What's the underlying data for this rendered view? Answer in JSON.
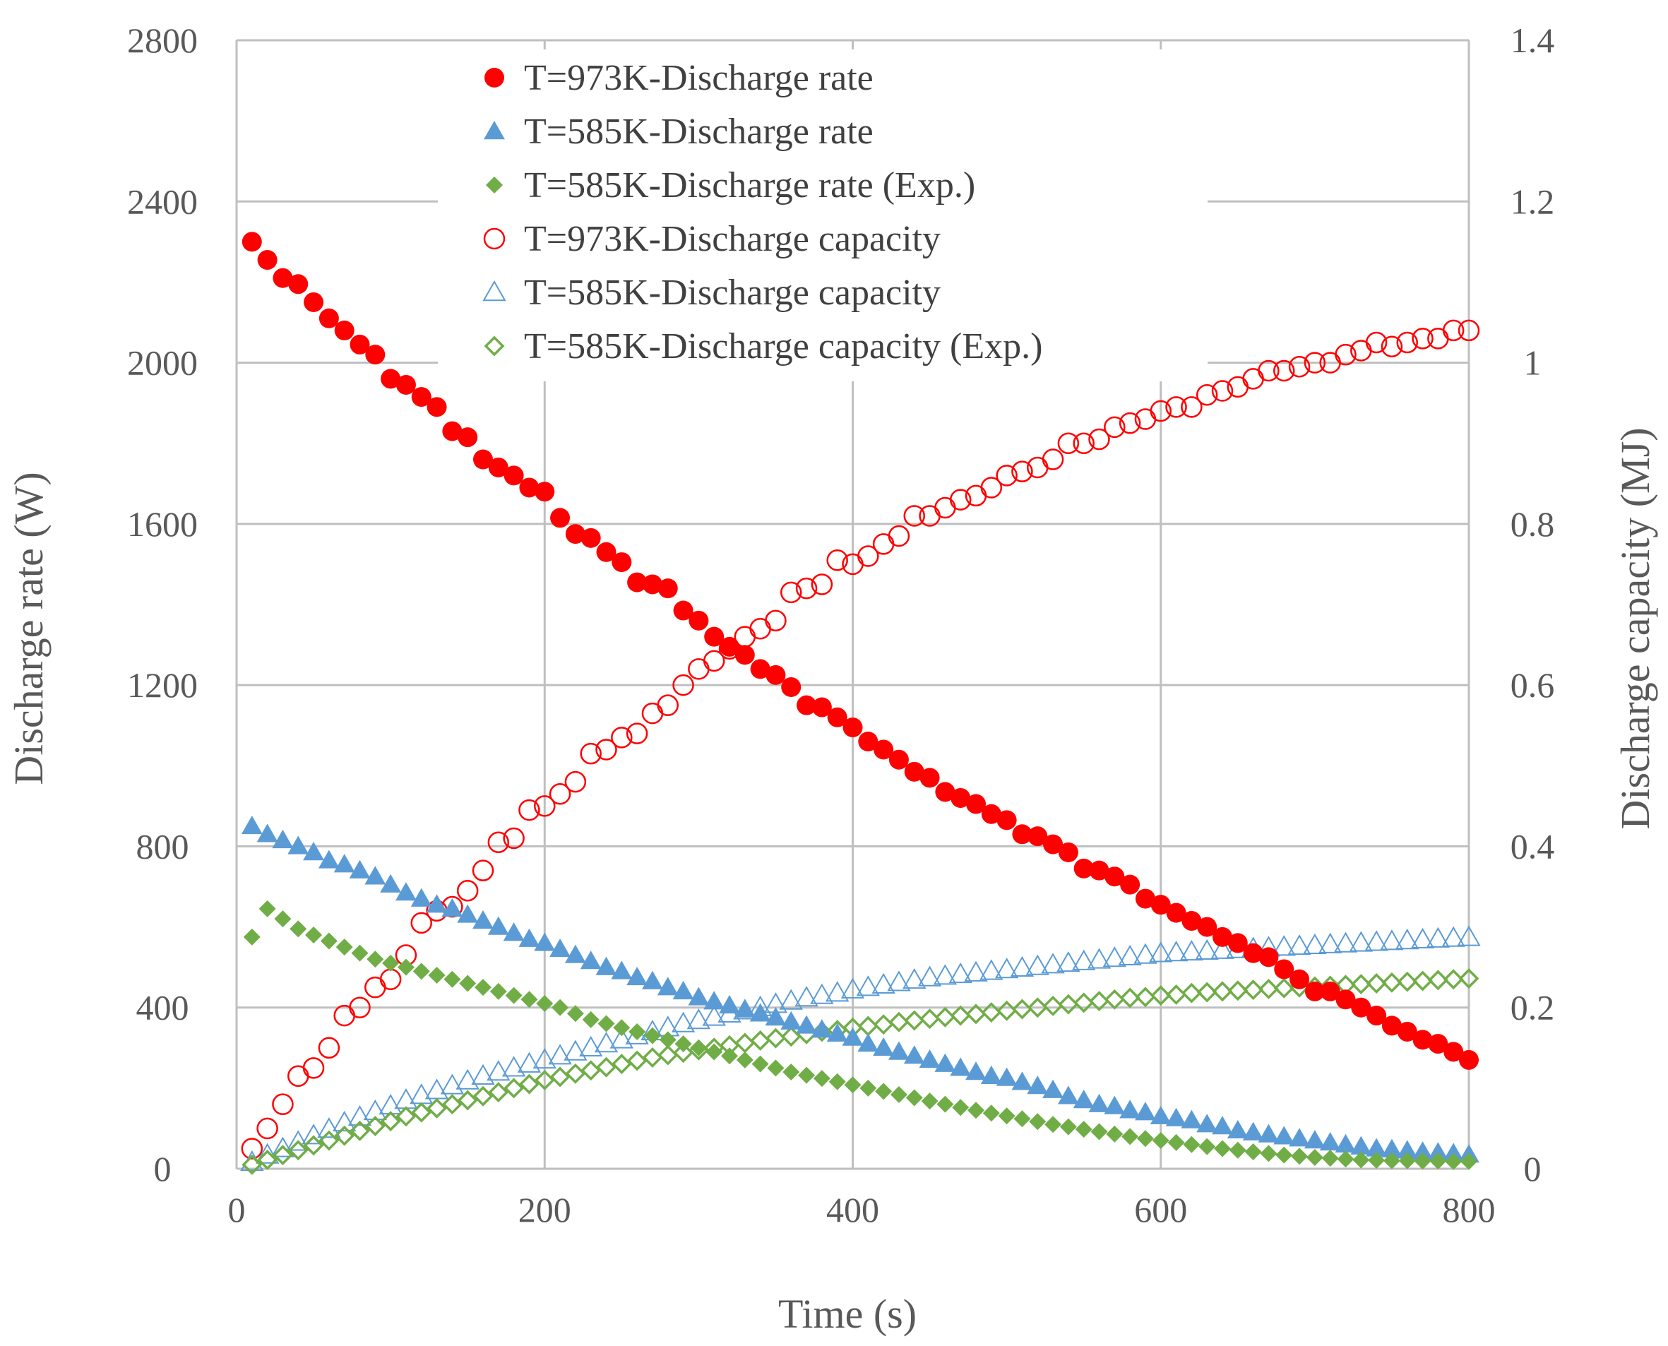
{
  "chart_data": {
    "type": "scatter",
    "title": "",
    "xlabel": "Time (s)",
    "ylabel": "Discharge rate (W)",
    "y2label": "Discharge capacity (MJ)",
    "xlim": [
      0,
      800
    ],
    "ylim": [
      0,
      2800
    ],
    "y2lim": [
      0,
      1.4
    ],
    "xticks": [
      "0",
      "200",
      "400",
      "600",
      "800"
    ],
    "yticks": [
      "0",
      "400",
      "800",
      "1200",
      "1600",
      "2000",
      "2400",
      "2800"
    ],
    "y2ticks": [
      "0",
      "0.2",
      "0.4",
      "0.6",
      "0.8",
      "1",
      "1.2",
      "1.4"
    ],
    "grid": true,
    "legend_position": "top-center",
    "series": [
      {
        "name": "T=973K-Discharge rate",
        "axis": "left",
        "marker": "circle",
        "filled": true,
        "color": "#ff0000",
        "x": [
          10,
          20,
          30,
          40,
          50,
          60,
          70,
          80,
          90,
          100,
          110,
          120,
          130,
          140,
          150,
          160,
          170,
          180,
          190,
          200,
          210,
          220,
          230,
          240,
          250,
          260,
          270,
          280,
          290,
          300,
          310,
          320,
          330,
          340,
          350,
          360,
          370,
          380,
          390,
          400,
          410,
          420,
          430,
          440,
          450,
          460,
          470,
          480,
          490,
          500,
          510,
          520,
          530,
          540,
          550,
          560,
          570,
          580,
          590,
          600,
          610,
          620,
          630,
          640,
          650,
          660,
          670,
          680,
          690,
          700,
          710,
          720,
          730,
          740,
          750,
          760,
          770,
          780,
          790,
          800
        ],
        "values": [
          2300,
          2255,
          2210,
          2195,
          2150,
          2110,
          2080,
          2045,
          2020,
          1960,
          1945,
          1915,
          1890,
          1830,
          1815,
          1760,
          1740,
          1720,
          1690,
          1680,
          1615,
          1575,
          1565,
          1530,
          1505,
          1455,
          1450,
          1440,
          1385,
          1360,
          1320,
          1295,
          1275,
          1240,
          1225,
          1195,
          1150,
          1145,
          1120,
          1095,
          1060,
          1040,
          1015,
          985,
          970,
          935,
          920,
          905,
          880,
          865,
          830,
          825,
          805,
          785,
          745,
          740,
          725,
          705,
          670,
          655,
          635,
          615,
          600,
          575,
          560,
          535,
          525,
          495,
          470,
          440,
          440,
          420,
          400,
          380,
          355,
          340,
          320,
          310,
          290,
          270
        ]
      },
      {
        "name": "T=585K-Discharge rate",
        "axis": "left",
        "marker": "triangle",
        "filled": true,
        "color": "#5b9bd5",
        "x": [
          10,
          20,
          30,
          40,
          50,
          60,
          70,
          80,
          90,
          100,
          110,
          120,
          130,
          140,
          150,
          160,
          170,
          180,
          190,
          200,
          210,
          220,
          230,
          240,
          250,
          260,
          270,
          280,
          290,
          300,
          310,
          320,
          330,
          340,
          350,
          360,
          370,
          380,
          390,
          400,
          410,
          420,
          430,
          440,
          450,
          460,
          470,
          480,
          490,
          500,
          510,
          520,
          530,
          540,
          550,
          560,
          570,
          580,
          590,
          600,
          610,
          620,
          630,
          640,
          650,
          660,
          670,
          680,
          690,
          700,
          710,
          720,
          730,
          740,
          750,
          760,
          770,
          780,
          790,
          800
        ],
        "values": [
          850,
          830,
          815,
          800,
          785,
          765,
          755,
          740,
          725,
          705,
          685,
          670,
          655,
          645,
          630,
          615,
          600,
          585,
          570,
          560,
          545,
          530,
          515,
          500,
          490,
          475,
          465,
          450,
          440,
          425,
          415,
          405,
          395,
          385,
          375,
          365,
          355,
          345,
          335,
          325,
          310,
          300,
          290,
          280,
          270,
          260,
          250,
          240,
          230,
          225,
          215,
          205,
          195,
          180,
          170,
          160,
          155,
          145,
          140,
          130,
          125,
          120,
          110,
          105,
          95,
          90,
          85,
          80,
          75,
          70,
          65,
          60,
          55,
          50,
          48,
          45,
          42,
          40,
          38,
          35
        ]
      },
      {
        "name": "T=585K-Discharge rate (Exp.)",
        "axis": "left",
        "marker": "diamond",
        "filled": true,
        "color": "#70ad47",
        "x": [
          10,
          20,
          30,
          40,
          50,
          60,
          70,
          80,
          90,
          100,
          110,
          120,
          130,
          140,
          150,
          160,
          170,
          180,
          190,
          200,
          210,
          220,
          230,
          240,
          250,
          260,
          270,
          280,
          290,
          300,
          310,
          320,
          330,
          340,
          350,
          360,
          370,
          380,
          390,
          400,
          410,
          420,
          430,
          440,
          450,
          460,
          470,
          480,
          490,
          500,
          510,
          520,
          530,
          540,
          550,
          560,
          570,
          580,
          590,
          600,
          610,
          620,
          630,
          640,
          650,
          660,
          670,
          680,
          690,
          700,
          710,
          720,
          730,
          740,
          750,
          760,
          770,
          780,
          790,
          800
        ],
        "values": [
          575,
          645,
          620,
          595,
          580,
          565,
          550,
          535,
          520,
          510,
          500,
          490,
          480,
          470,
          460,
          450,
          440,
          430,
          420,
          410,
          400,
          385,
          370,
          360,
          350,
          340,
          330,
          320,
          310,
          300,
          290,
          280,
          270,
          260,
          250,
          240,
          232,
          224,
          216,
          208,
          200,
          192,
          184,
          176,
          168,
          160,
          152,
          145,
          138,
          131,
          124,
          117,
          110,
          104,
          98,
          92,
          86,
          80,
          75,
          70,
          65,
          60,
          55,
          50,
          46,
          42,
          38,
          34,
          31,
          28,
          26,
          24,
          22,
          21,
          20,
          20,
          19,
          19,
          18,
          18
        ]
      },
      {
        "name": "T=973K-Discharge capacity",
        "axis": "right",
        "marker": "circle",
        "filled": false,
        "color": "#ff0000",
        "x": [
          10,
          20,
          30,
          40,
          50,
          60,
          70,
          80,
          90,
          100,
          110,
          120,
          130,
          140,
          150,
          160,
          170,
          180,
          190,
          200,
          210,
          220,
          230,
          240,
          250,
          260,
          270,
          280,
          290,
          300,
          310,
          320,
          330,
          340,
          350,
          360,
          370,
          380,
          390,
          400,
          410,
          420,
          430,
          440,
          450,
          460,
          470,
          480,
          490,
          500,
          510,
          520,
          530,
          540,
          550,
          560,
          570,
          580,
          590,
          600,
          610,
          620,
          630,
          640,
          650,
          660,
          670,
          680,
          690,
          700,
          710,
          720,
          730,
          740,
          750,
          760,
          770,
          780,
          790,
          800
        ],
        "values": [
          0.025,
          0.05,
          0.08,
          0.115,
          0.125,
          0.15,
          0.19,
          0.2,
          0.225,
          0.235,
          0.265,
          0.305,
          0.32,
          0.325,
          0.345,
          0.37,
          0.405,
          0.41,
          0.445,
          0.45,
          0.465,
          0.48,
          0.515,
          0.52,
          0.535,
          0.54,
          0.565,
          0.575,
          0.6,
          0.62,
          0.63,
          0.645,
          0.66,
          0.67,
          0.68,
          0.715,
          0.72,
          0.725,
          0.755,
          0.75,
          0.76,
          0.775,
          0.785,
          0.81,
          0.81,
          0.82,
          0.83,
          0.835,
          0.845,
          0.86,
          0.865,
          0.87,
          0.88,
          0.9,
          0.9,
          0.905,
          0.92,
          0.925,
          0.93,
          0.94,
          0.945,
          0.945,
          0.96,
          0.965,
          0.97,
          0.98,
          0.99,
          0.99,
          0.995,
          1.0,
          1.0,
          1.01,
          1.015,
          1.025,
          1.02,
          1.025,
          1.03,
          1.03,
          1.04,
          1.04
        ]
      },
      {
        "name": "T=585K-Discharge capacity",
        "axis": "right",
        "marker": "triangle",
        "filled": false,
        "color": "#5b9bd5",
        "x": [
          10,
          20,
          30,
          40,
          50,
          60,
          70,
          80,
          90,
          100,
          110,
          120,
          130,
          140,
          150,
          160,
          170,
          180,
          190,
          200,
          210,
          220,
          230,
          240,
          250,
          260,
          270,
          280,
          290,
          300,
          310,
          320,
          330,
          340,
          350,
          360,
          370,
          380,
          390,
          400,
          410,
          420,
          430,
          440,
          450,
          460,
          470,
          480,
          490,
          500,
          510,
          520,
          530,
          540,
          550,
          560,
          570,
          580,
          590,
          600,
          610,
          620,
          630,
          640,
          650,
          660,
          670,
          680,
          690,
          700,
          710,
          720,
          730,
          740,
          750,
          760,
          770,
          780,
          790,
          800
        ],
        "values": [
          0.008,
          0.017,
          0.025,
          0.033,
          0.041,
          0.049,
          0.057,
          0.064,
          0.071,
          0.078,
          0.085,
          0.091,
          0.097,
          0.103,
          0.109,
          0.115,
          0.12,
          0.125,
          0.13,
          0.135,
          0.14,
          0.145,
          0.15,
          0.155,
          0.16,
          0.165,
          0.17,
          0.175,
          0.18,
          0.184,
          0.188,
          0.192,
          0.196,
          0.2,
          0.204,
          0.208,
          0.212,
          0.215,
          0.218,
          0.222,
          0.225,
          0.228,
          0.231,
          0.234,
          0.237,
          0.239,
          0.241,
          0.243,
          0.245,
          0.247,
          0.249,
          0.251,
          0.253,
          0.255,
          0.257,
          0.259,
          0.261,
          0.263,
          0.265,
          0.267,
          0.268,
          0.269,
          0.27,
          0.271,
          0.272,
          0.273,
          0.274,
          0.275,
          0.276,
          0.277,
          0.278,
          0.279,
          0.28,
          0.281,
          0.282,
          0.283,
          0.284,
          0.285,
          0.286,
          0.287
        ]
      },
      {
        "name": "T=585K-Discharge capacity (Exp.)",
        "axis": "right",
        "marker": "diamond",
        "filled": false,
        "color": "#70ad47",
        "x": [
          10,
          20,
          30,
          40,
          50,
          60,
          70,
          80,
          90,
          100,
          110,
          120,
          130,
          140,
          150,
          160,
          170,
          180,
          190,
          200,
          210,
          220,
          230,
          240,
          250,
          260,
          270,
          280,
          290,
          300,
          310,
          320,
          330,
          340,
          350,
          360,
          370,
          380,
          390,
          400,
          410,
          420,
          430,
          440,
          450,
          460,
          470,
          480,
          490,
          500,
          510,
          520,
          530,
          540,
          550,
          560,
          570,
          580,
          590,
          600,
          610,
          620,
          630,
          640,
          650,
          660,
          670,
          680,
          690,
          700,
          710,
          720,
          730,
          740,
          750,
          760,
          770,
          780,
          790,
          800
        ],
        "values": [
          0.005,
          0.011,
          0.017,
          0.023,
          0.029,
          0.035,
          0.041,
          0.047,
          0.053,
          0.059,
          0.065,
          0.07,
          0.075,
          0.08,
          0.085,
          0.09,
          0.095,
          0.1,
          0.105,
          0.11,
          0.114,
          0.118,
          0.122,
          0.126,
          0.13,
          0.134,
          0.138,
          0.141,
          0.144,
          0.147,
          0.15,
          0.153,
          0.156,
          0.159,
          0.162,
          0.164,
          0.167,
          0.17,
          0.172,
          0.175,
          0.177,
          0.179,
          0.182,
          0.184,
          0.186,
          0.188,
          0.19,
          0.192,
          0.194,
          0.196,
          0.198,
          0.2,
          0.202,
          0.204,
          0.206,
          0.208,
          0.21,
          0.212,
          0.213,
          0.215,
          0.216,
          0.218,
          0.219,
          0.22,
          0.221,
          0.222,
          0.223,
          0.224,
          0.225,
          0.226,
          0.227,
          0.228,
          0.229,
          0.23,
          0.231,
          0.232,
          0.233,
          0.234,
          0.235,
          0.236
        ]
      }
    ]
  }
}
